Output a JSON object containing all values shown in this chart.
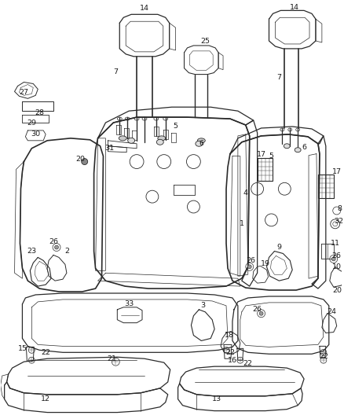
{
  "bg_color": "#ffffff",
  "line_color": "#2a2a2a",
  "label_color": "#1a1a1a",
  "figsize": [
    4.38,
    5.33
  ],
  "dpi": 100,
  "lw_main": 0.9,
  "lw_thin": 0.5,
  "lw_thick": 1.2,
  "label_fontsize": 6.8
}
